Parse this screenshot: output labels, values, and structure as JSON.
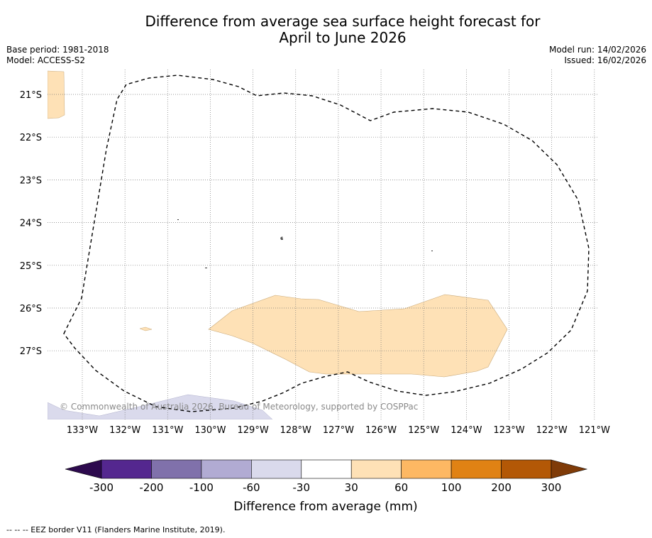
{
  "title_line1": "Difference from average sea surface height forecast for",
  "title_line2": "April to June 2026",
  "base_period": "Base period: 1981-2018",
  "model": "Model: ACCESS-S2",
  "model_run": "Model run: 14/02/2026",
  "issued": "Issued: 16/02/2026",
  "copyright": "© Commonwealth of Australia 2026, Bureau of Meteorology, supported by COSPPac",
  "eez_note": "--  --  -- EEZ border V11 (Flanders Marine Institute, 2019).",
  "lat_labels": [
    "21°S",
    "22°S",
    "23°S",
    "24°S",
    "25°S",
    "26°S",
    "27°S"
  ],
  "lon_labels": [
    "133°W",
    "132°W",
    "131°W",
    "130°W",
    "129°W",
    "128°W",
    "127°W",
    "126°W",
    "125°W",
    "124°W",
    "123°W",
    "122°W",
    "121°W"
  ],
  "colorbar": {
    "label": "Difference from average (mm)",
    "ticks": [
      "-300",
      "-200",
      "-100",
      "-60",
      "-30",
      "30",
      "60",
      "100",
      "200",
      "300"
    ],
    "colors": [
      "#2d0a4e",
      "#54278f",
      "#8071ab",
      "#b1abd3",
      "#dadaec",
      "#ffffff",
      "#fee1b6",
      "#fdb863",
      "#e08214",
      "#b35806",
      "#7f3b08"
    ]
  },
  "map_colors": {
    "positive_light": "#fee1b6",
    "negative_light": "#dadaec"
  }
}
